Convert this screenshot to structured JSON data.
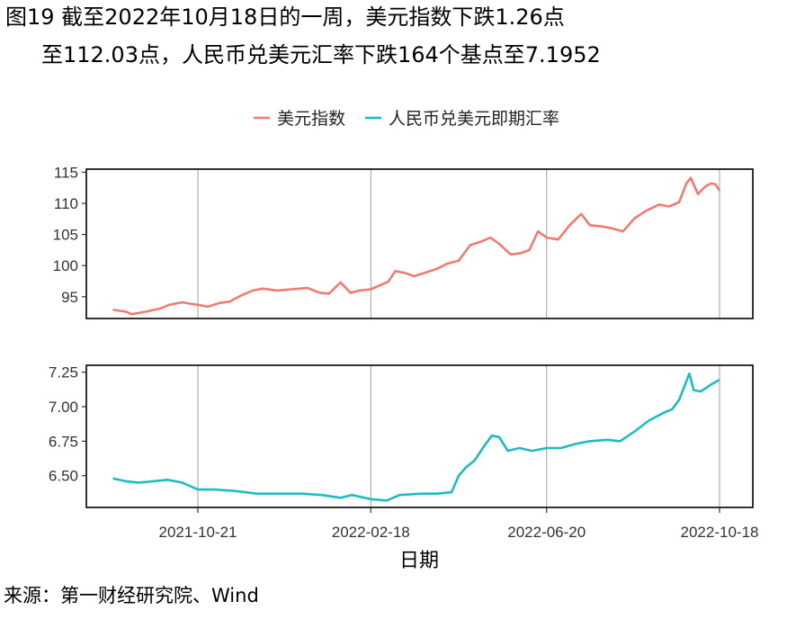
{
  "title_line1": "图19  截至2022年10月18日的一周，美元指数下跌1.26点",
  "title_line2": "至112.03点，人民币兑美元汇率下跌164个基点至7.1952",
  "source": "来源：第一财经研究院、Wind",
  "chart_data": {
    "type": "line",
    "xlabel": "日期",
    "legend": {
      "placement": "top"
    },
    "x_ticks": [
      "2021-10-21",
      "2022-02-18",
      "2022-06-20",
      "2022-10-18"
    ],
    "panels": [
      {
        "series_name": "美元指数",
        "color": "#f07b73",
        "ylim": [
          91.5,
          115.5
        ],
        "y_ticks": [
          95,
          100,
          105,
          110,
          115
        ],
        "y_tick_labels": [
          "95",
          "100",
          "105",
          "110",
          "115"
        ],
        "points": [
          [
            "2021-08-23",
            92.9
          ],
          [
            "2021-09-01",
            92.6
          ],
          [
            "2021-09-05",
            92.2
          ],
          [
            "2021-09-15",
            92.6
          ],
          [
            "2021-09-25",
            93.1
          ],
          [
            "2021-10-01",
            93.7
          ],
          [
            "2021-10-10",
            94.1
          ],
          [
            "2021-10-15",
            93.9
          ],
          [
            "2021-10-21",
            93.7
          ],
          [
            "2021-10-28",
            93.4
          ],
          [
            "2021-11-05",
            94.0
          ],
          [
            "2021-11-12",
            94.2
          ],
          [
            "2021-11-20",
            95.2
          ],
          [
            "2021-11-28",
            96.0
          ],
          [
            "2021-12-05",
            96.3
          ],
          [
            "2021-12-15",
            96.0
          ],
          [
            "2021-12-25",
            96.2
          ],
          [
            "2022-01-05",
            96.4
          ],
          [
            "2022-01-14",
            95.6
          ],
          [
            "2022-01-20",
            95.5
          ],
          [
            "2022-01-28",
            97.3
          ],
          [
            "2022-02-04",
            95.6
          ],
          [
            "2022-02-10",
            96.0
          ],
          [
            "2022-02-18",
            96.2
          ],
          [
            "2022-02-24",
            96.8
          ],
          [
            "2022-03-02",
            97.4
          ],
          [
            "2022-03-07",
            99.1
          ],
          [
            "2022-03-14",
            98.8
          ],
          [
            "2022-03-20",
            98.3
          ],
          [
            "2022-03-27",
            98.8
          ],
          [
            "2022-04-05",
            99.5
          ],
          [
            "2022-04-12",
            100.3
          ],
          [
            "2022-04-20",
            100.8
          ],
          [
            "2022-04-28",
            103.3
          ],
          [
            "2022-05-05",
            103.8
          ],
          [
            "2022-05-12",
            104.5
          ],
          [
            "2022-05-18",
            103.5
          ],
          [
            "2022-05-26",
            101.8
          ],
          [
            "2022-06-02",
            102.0
          ],
          [
            "2022-06-08",
            102.5
          ],
          [
            "2022-06-14",
            105.5
          ],
          [
            "2022-06-20",
            104.5
          ],
          [
            "2022-06-28",
            104.2
          ],
          [
            "2022-07-06",
            106.5
          ],
          [
            "2022-07-14",
            108.3
          ],
          [
            "2022-07-20",
            106.5
          ],
          [
            "2022-07-28",
            106.3
          ],
          [
            "2022-08-04",
            106.0
          ],
          [
            "2022-08-12",
            105.5
          ],
          [
            "2022-08-20",
            107.6
          ],
          [
            "2022-08-28",
            108.8
          ],
          [
            "2022-09-06",
            109.8
          ],
          [
            "2022-09-13",
            109.5
          ],
          [
            "2022-09-20",
            110.2
          ],
          [
            "2022-09-25",
            113.2
          ],
          [
            "2022-09-28",
            114.1
          ],
          [
            "2022-10-03",
            111.5
          ],
          [
            "2022-10-08",
            112.7
          ],
          [
            "2022-10-12",
            113.2
          ],
          [
            "2022-10-15",
            113.1
          ],
          [
            "2022-10-18",
            112.03
          ]
        ]
      },
      {
        "series_name": "人民币兑美元即期汇率",
        "color": "#1fbcbf",
        "ylim": [
          6.27,
          7.3
        ],
        "y_ticks": [
          6.5,
          6.75,
          7.0,
          7.25
        ],
        "y_tick_labels": [
          "6.50",
          "6.75",
          "7.00",
          "7.25"
        ],
        "points": [
          [
            "2021-08-23",
            6.48
          ],
          [
            "2021-09-01",
            6.46
          ],
          [
            "2021-09-10",
            6.45
          ],
          [
            "2021-09-20",
            6.46
          ],
          [
            "2021-09-30",
            6.47
          ],
          [
            "2021-10-10",
            6.45
          ],
          [
            "2021-10-21",
            6.4
          ],
          [
            "2021-11-01",
            6.4
          ],
          [
            "2021-11-15",
            6.39
          ],
          [
            "2021-12-01",
            6.37
          ],
          [
            "2021-12-15",
            6.37
          ],
          [
            "2022-01-01",
            6.37
          ],
          [
            "2022-01-15",
            6.36
          ],
          [
            "2022-01-28",
            6.34
          ],
          [
            "2022-02-05",
            6.36
          ],
          [
            "2022-02-18",
            6.33
          ],
          [
            "2022-03-01",
            6.32
          ],
          [
            "2022-03-10",
            6.36
          ],
          [
            "2022-03-25",
            6.37
          ],
          [
            "2022-04-05",
            6.37
          ],
          [
            "2022-04-15",
            6.38
          ],
          [
            "2022-04-20",
            6.5
          ],
          [
            "2022-04-25",
            6.56
          ],
          [
            "2022-05-01",
            6.61
          ],
          [
            "2022-05-08",
            6.72
          ],
          [
            "2022-05-13",
            6.79
          ],
          [
            "2022-05-18",
            6.78
          ],
          [
            "2022-05-24",
            6.68
          ],
          [
            "2022-06-01",
            6.7
          ],
          [
            "2022-06-10",
            6.68
          ],
          [
            "2022-06-20",
            6.7
          ],
          [
            "2022-06-30",
            6.7
          ],
          [
            "2022-07-10",
            6.73
          ],
          [
            "2022-07-20",
            6.75
          ],
          [
            "2022-08-01",
            6.76
          ],
          [
            "2022-08-10",
            6.75
          ],
          [
            "2022-08-20",
            6.82
          ],
          [
            "2022-08-30",
            6.9
          ],
          [
            "2022-09-10",
            6.96
          ],
          [
            "2022-09-15",
            6.98
          ],
          [
            "2022-09-20",
            7.05
          ],
          [
            "2022-09-27",
            7.24
          ],
          [
            "2022-09-30",
            7.12
          ],
          [
            "2022-10-05",
            7.11
          ],
          [
            "2022-10-12",
            7.16
          ],
          [
            "2022-10-18",
            7.1952
          ]
        ]
      }
    ]
  }
}
